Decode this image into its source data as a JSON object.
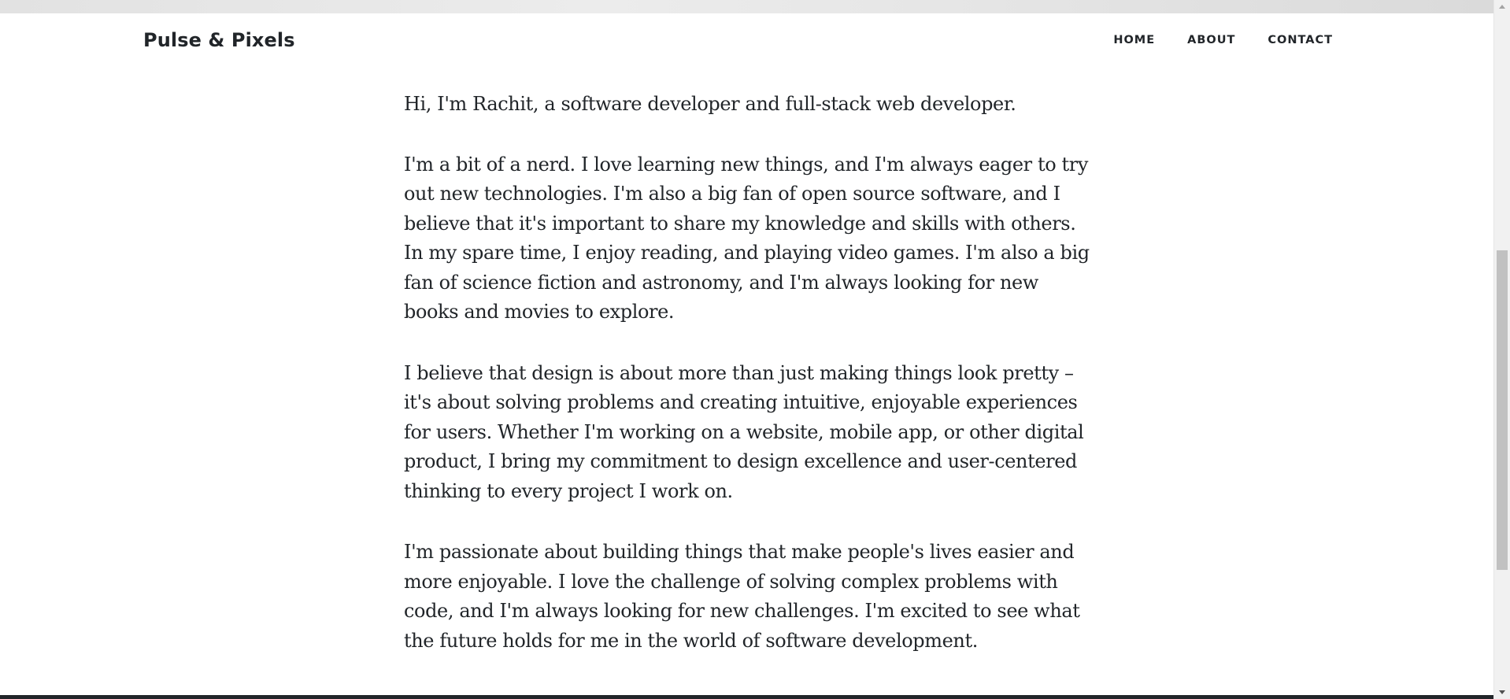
{
  "navbar": {
    "brand": "Pulse & Pixels",
    "links": [
      {
        "label": "HOME"
      },
      {
        "label": "ABOUT"
      },
      {
        "label": "CONTACT"
      }
    ]
  },
  "about": {
    "paragraphs": [
      "Hi, I'm Rachit, a software developer and full-stack web developer.",
      "I'm a bit of a nerd. I love learning new things, and I'm always eager to try out new technologies. I'm also a big fan of open source software, and I believe that it's important to share my knowledge and skills with others. In my spare time, I enjoy reading, and playing video games. I'm also a big fan of science fiction and astronomy, and I'm always looking for new books and movies to explore.",
      "I believe that design is about more than just making things look pretty – it's about solving problems and creating intuitive, enjoyable experiences for users. Whether I'm working on a website, mobile app, or other digital product, I bring my commitment to design excellence and user-centered thinking to every project I work on.",
      "I'm passionate about building things that make people's lives easier and more enjoyable. I love the challenge of solving complex problems with code, and I'm always looking for new challenges. I'm excited to see what the future holds for me in the world of software development."
    ]
  }
}
